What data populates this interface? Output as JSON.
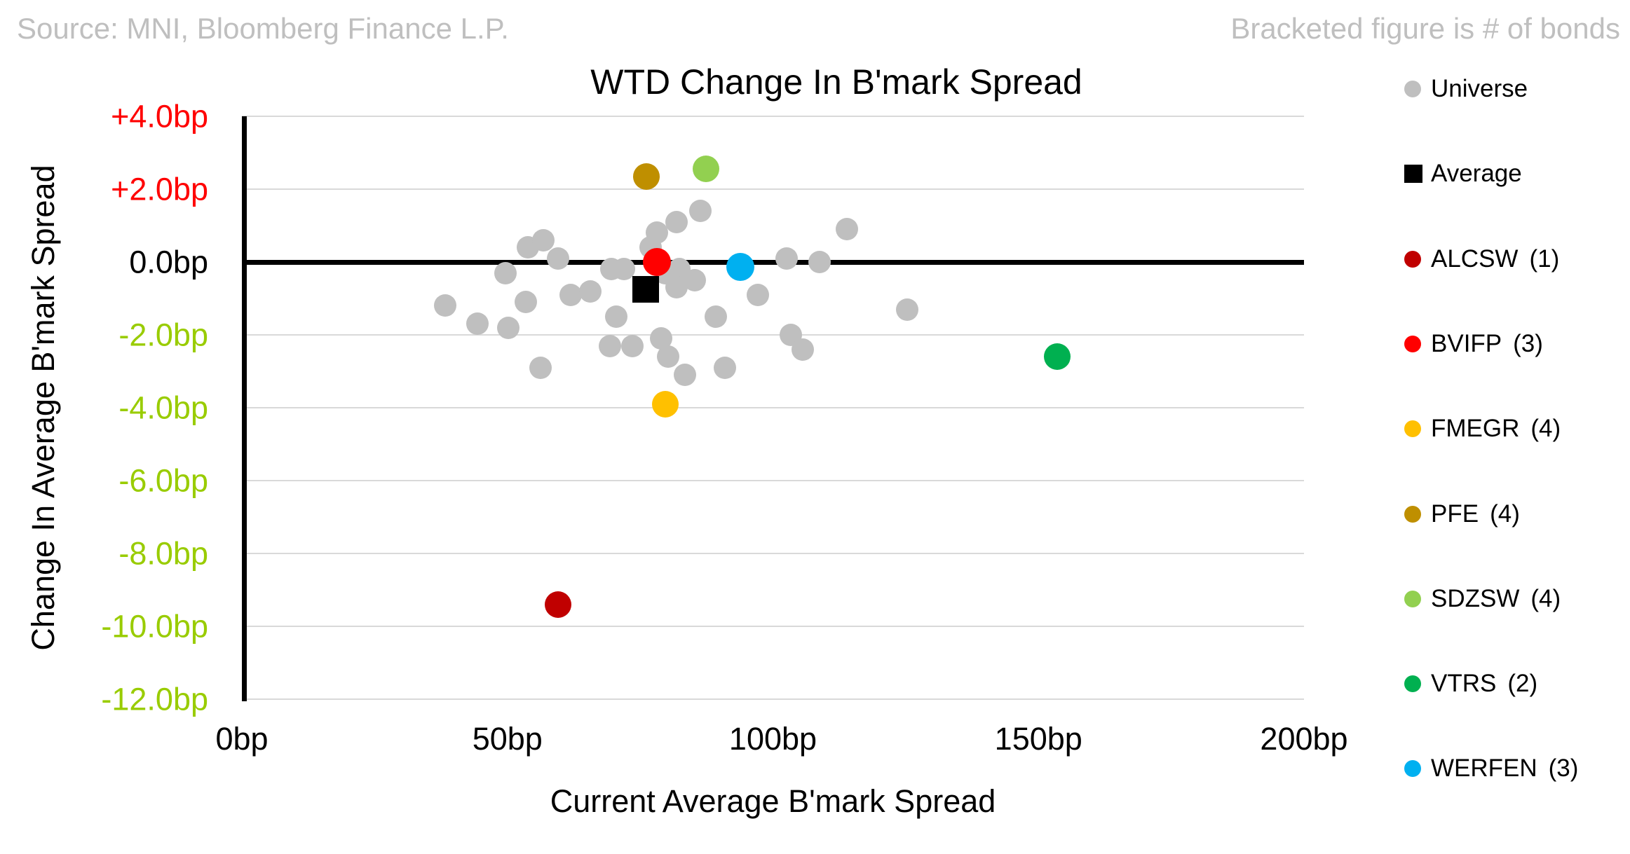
{
  "header": {
    "source": "Source: MNI, Bloomberg Finance L.P.",
    "note": "Bracketed figure is # of bonds"
  },
  "legend": {
    "entries": [
      {
        "label": "Universe",
        "count": "",
        "color": "#BFBFBF",
        "marker": "circle"
      },
      {
        "label": "Average",
        "count": "",
        "color": "#000000",
        "marker": "square"
      },
      {
        "label": "ALCSW",
        "count": "(1)",
        "color": "#C00000",
        "marker": "circle"
      },
      {
        "label": "BVIFP",
        "count": "(3)",
        "color": "#FF0000",
        "marker": "circle"
      },
      {
        "label": "FMEGR",
        "count": "(4)",
        "color": "#FFC000",
        "marker": "circle"
      },
      {
        "label": "PFE",
        "count": "(4)",
        "color": "#BF8F00",
        "marker": "circle"
      },
      {
        "label": "SDZSW",
        "count": "(4)",
        "color": "#92D050",
        "marker": "circle"
      },
      {
        "label": "VTRS",
        "count": "(2)",
        "color": "#00B050",
        "marker": "circle"
      },
      {
        "label": "WERFEN",
        "count": "(3)",
        "color": "#00B0F0",
        "marker": "circle"
      }
    ]
  },
  "chart_data": {
    "type": "scatter",
    "title": "WTD Change In B'mark Spread",
    "xlabel": "Current Average B'mark Spread",
    "ylabel": "Change In Average B'mark Spread",
    "xlim": [
      0,
      200
    ],
    "ylim": [
      -12,
      4
    ],
    "grid": true,
    "legend_position": "right",
    "x_ticks": [
      {
        "value": 0,
        "label": "0bp"
      },
      {
        "value": 50,
        "label": "50bp"
      },
      {
        "value": 100,
        "label": "100bp"
      },
      {
        "value": 150,
        "label": "150bp"
      },
      {
        "value": 200,
        "label": "200bp"
      }
    ],
    "y_ticks": [
      {
        "value": 4,
        "label": "+4.0bp",
        "color": "#FF0000"
      },
      {
        "value": 2,
        "label": "+2.0bp",
        "color": "#FF0000"
      },
      {
        "value": 0,
        "label": "0.0bp",
        "color": "#000000"
      },
      {
        "value": -2,
        "label": "-2.0bp",
        "color": "#99CC00"
      },
      {
        "value": -4,
        "label": "-4.0bp",
        "color": "#99CC00"
      },
      {
        "value": -6,
        "label": "-6.0bp",
        "color": "#99CC00"
      },
      {
        "value": -8,
        "label": "-8.0bp",
        "color": "#99CC00"
      },
      {
        "value": -10,
        "label": "-10.0bp",
        "color": "#99CC00"
      },
      {
        "value": -12,
        "label": "-12.0bp",
        "color": "#99CC00"
      }
    ],
    "series": [
      {
        "name": "Universe",
        "color": "#BFBFBF",
        "marker": "circle",
        "size": 32,
        "points": [
          [
            53.8,
            0.4
          ],
          [
            56.8,
            0.6
          ],
          [
            59.5,
            0.1
          ],
          [
            49.6,
            -0.3
          ],
          [
            38.3,
            -1.2
          ],
          [
            44.4,
            -1.7
          ],
          [
            50.1,
            -1.8
          ],
          [
            53.4,
            -1.1
          ],
          [
            61.9,
            -0.9
          ],
          [
            65.6,
            -0.8
          ],
          [
            69.6,
            -0.2
          ],
          [
            71.9,
            -0.2
          ],
          [
            76.9,
            0.4
          ],
          [
            78.1,
            0.8
          ],
          [
            81.8,
            1.1
          ],
          [
            86.4,
            1.4
          ],
          [
            79.7,
            -0.3
          ],
          [
            82.4,
            -0.2
          ],
          [
            81.9,
            -0.7
          ],
          [
            85.3,
            -0.5
          ],
          [
            89.2,
            -1.5
          ],
          [
            97.1,
            -0.9
          ],
          [
            102.6,
            0.1
          ],
          [
            108.8,
            0.0
          ],
          [
            113.9,
            0.9
          ],
          [
            125.3,
            -1.3
          ],
          [
            90.9,
            -2.9
          ],
          [
            103.4,
            -2.0
          ],
          [
            105.6,
            -2.4
          ],
          [
            70.5,
            -1.5
          ],
          [
            69.3,
            -2.3
          ],
          [
            73.5,
            -2.3
          ],
          [
            78.9,
            -2.1
          ],
          [
            80.3,
            -2.6
          ],
          [
            83.4,
            -3.1
          ],
          [
            56.2,
            -2.9
          ]
        ]
      },
      {
        "name": "Average",
        "color": "#000000",
        "marker": "square",
        "size": 38,
        "points": [
          [
            76.0,
            -0.75
          ]
        ]
      },
      {
        "name": "ALCSW",
        "color": "#C00000",
        "marker": "circle",
        "size": 38,
        "points": [
          [
            59.6,
            -9.4
          ]
        ]
      },
      {
        "name": "BVIFP",
        "color": "#FF0000",
        "marker": "circle",
        "size": 40,
        "points": [
          [
            78.2,
            0.0
          ]
        ]
      },
      {
        "name": "FMEGR",
        "color": "#FFC000",
        "marker": "circle",
        "size": 38,
        "points": [
          [
            79.7,
            -3.9
          ]
        ]
      },
      {
        "name": "PFE",
        "color": "#BF8F00",
        "marker": "circle",
        "size": 38,
        "points": [
          [
            76.2,
            2.35
          ]
        ]
      },
      {
        "name": "SDZSW",
        "color": "#92D050",
        "marker": "circle",
        "size": 38,
        "points": [
          [
            87.4,
            2.55
          ]
        ]
      },
      {
        "name": "VTRS",
        "color": "#00B050",
        "marker": "circle",
        "size": 38,
        "points": [
          [
            153.5,
            -2.6
          ]
        ]
      },
      {
        "name": "WERFEN",
        "color": "#00B0F0",
        "marker": "circle",
        "size": 40,
        "points": [
          [
            93.8,
            -0.13
          ]
        ]
      }
    ]
  }
}
